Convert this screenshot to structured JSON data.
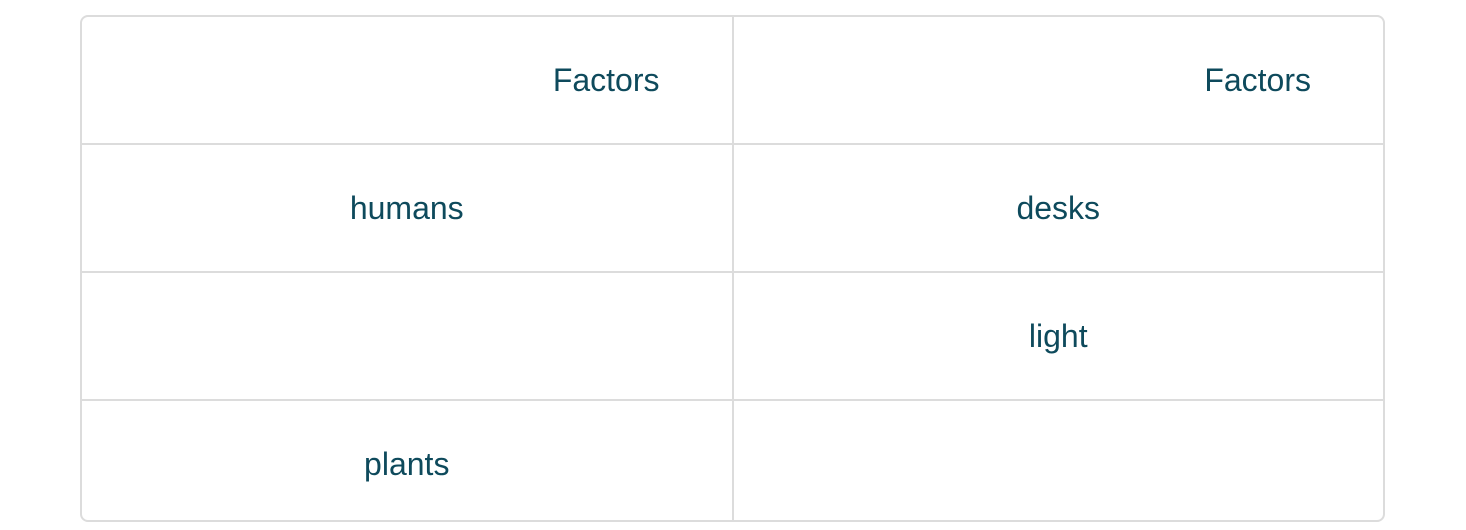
{
  "table": {
    "headers": [
      "Factors",
      "Factors"
    ],
    "rows": [
      [
        "humans",
        "desks"
      ],
      [
        "",
        "light"
      ],
      [
        "plants",
        ""
      ]
    ]
  },
  "colors": {
    "text": "#0e4a5c",
    "border": "#dcdcdc"
  }
}
